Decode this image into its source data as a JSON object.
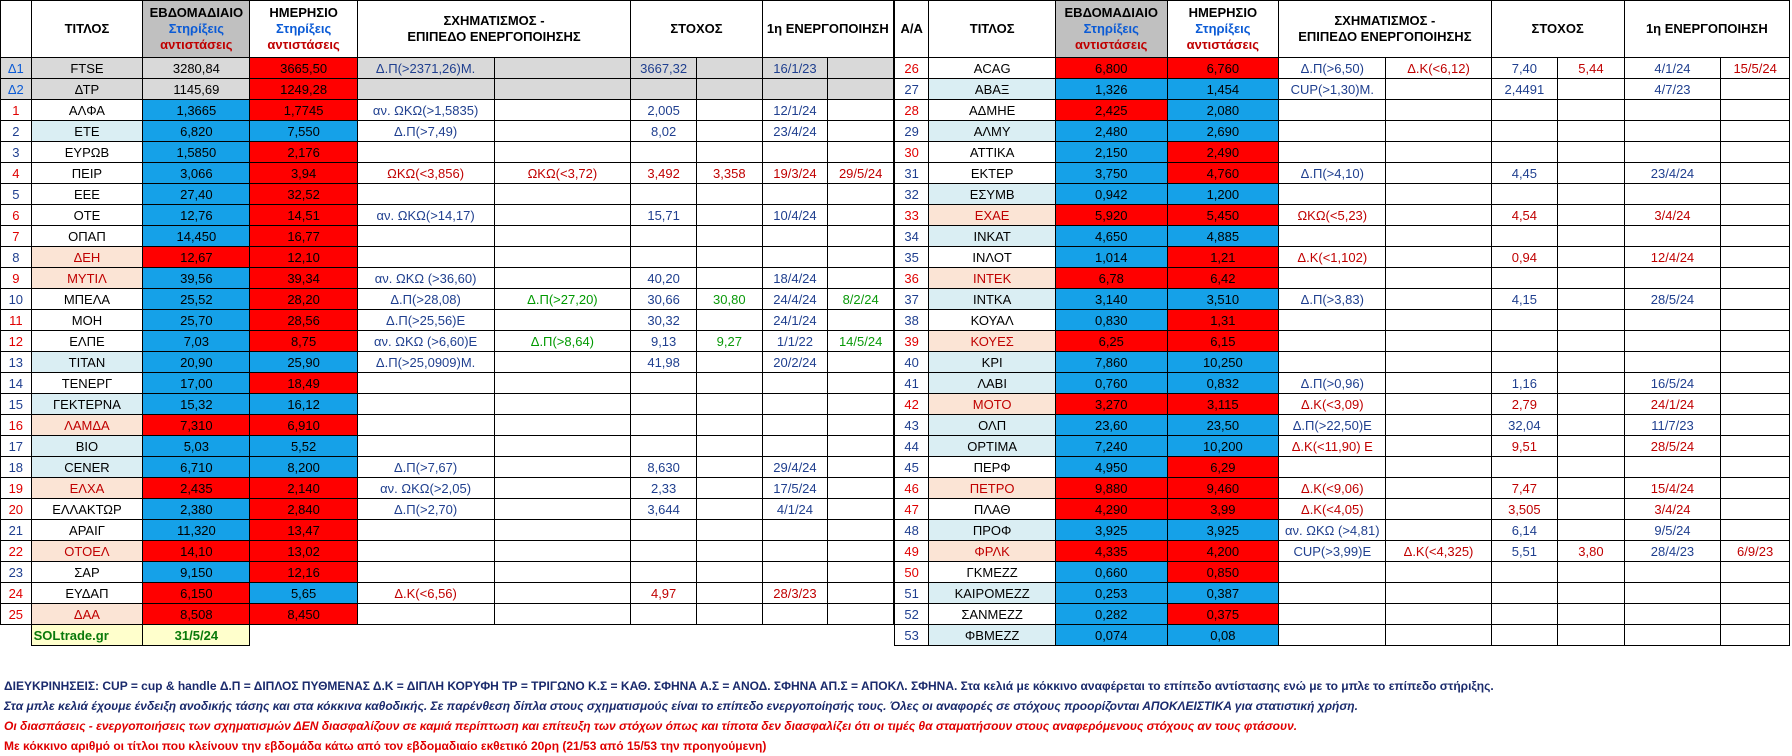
{
  "headers": {
    "title": "ΤΙΤΛΟΣ",
    "weekly_line1": "ΕΒΔΟΜΑΔΙΑΙΟ",
    "weekly_line2": "Στηρίξεις",
    "weekly_line3": "αντιστάσεις",
    "daily_line1": "ΗΜΕΡΗΣΙΟ",
    "daily_line2": "Στηρίξεις",
    "daily_line3": "αντιστάσεις",
    "pattern_line1": "ΣΧΗΜΑΤΙΣΜΟΣ -",
    "pattern_line2": "ΕΠΙΠΕΔΟ ΕΝΕΡΓΟΠΟΙΗΣΗΣ",
    "target": "ΣΤΟΧΟΣ",
    "activation": "1η ΕΝΕΡΓΟΠΟΙΗΣΗ",
    "aa": "Α/Α"
  },
  "left_rows": [
    {
      "idx": "Δ1",
      "name": "FTSE",
      "w": "3280,84",
      "d": "3665,50",
      "p1": "Δ.Π(>2371,26)Μ.",
      "p2": "",
      "t1": "3667,32",
      "t2": "",
      "a1": "16/1/23",
      "a2": ""
    },
    {
      "idx": "Δ2",
      "name": "ΔΤΡ",
      "w": "1145,69",
      "d": "1249,28",
      "p1": "",
      "p2": "",
      "t1": "",
      "t2": "",
      "a1": "",
      "a2": ""
    },
    {
      "idx": "1",
      "name": "ΑΛΦΑ",
      "w": "1,3665",
      "d": "1,7745",
      "p1": "αν. ΩΚΩ(>1,5835)",
      "p2": "",
      "t1": "2,005",
      "t2": "",
      "a1": "12/1/24",
      "a2": ""
    },
    {
      "idx": "2",
      "name": "ΕΤΕ",
      "w": "6,820",
      "d": "7,550",
      "p1": "Δ.Π(>7,49)",
      "p2": "",
      "t1": "8,02",
      "t2": "",
      "a1": "23/4/24",
      "a2": ""
    },
    {
      "idx": "3",
      "name": "ΕΥΡΩΒ",
      "w": "1,5850",
      "d": "2,176",
      "p1": "",
      "p2": "",
      "t1": "",
      "t2": "",
      "a1": "",
      "a2": ""
    },
    {
      "idx": "4",
      "name": "ΠΕΙΡ",
      "w": "3,066",
      "d": "3,94",
      "p1": "ΩΚΩ(<3,856)",
      "p2": "ΩΚΩ(<3,72)",
      "t1": "3,492",
      "t2": "3,358",
      "a1": "19/3/24",
      "a2": "29/5/24"
    },
    {
      "idx": "5",
      "name": "ΕΕΕ",
      "w": "27,40",
      "d": "32,52",
      "p1": "",
      "p2": "",
      "t1": "",
      "t2": "",
      "a1": "",
      "a2": ""
    },
    {
      "idx": "6",
      "name": "ΟΤΕ",
      "w": "12,76",
      "d": "14,51",
      "p1": "αν. ΩΚΩ(>14,17)",
      "p2": "",
      "t1": "15,71",
      "t2": "",
      "a1": "10/4/24",
      "a2": ""
    },
    {
      "idx": "7",
      "name": "ΟΠΑΠ",
      "w": "14,450",
      "d": "16,77",
      "p1": "",
      "p2": "",
      "t1": "",
      "t2": "",
      "a1": "",
      "a2": ""
    },
    {
      "idx": "8",
      "name": "ΔΕΗ",
      "w": "12,67",
      "d": "12,10",
      "p1": "",
      "p2": "",
      "t1": "",
      "t2": "",
      "a1": "",
      "a2": ""
    },
    {
      "idx": "9",
      "name": "ΜΥΤΙΛ",
      "w": "39,56",
      "d": "39,34",
      "p1": "αν. ΩΚΩ (>36,60)",
      "p2": "",
      "t1": "40,20",
      "t2": "",
      "a1": "18/4/24",
      "a2": ""
    },
    {
      "idx": "10",
      "name": "ΜΠΕΛΑ",
      "w": "25,52",
      "d": "28,20",
      "p1": "Δ.Π(>28,08)",
      "p2": "Δ.Π(>27,20)",
      "t1": "30,66",
      "t2": "30,80",
      "a1": "24/4/24",
      "a2": "8/2/24"
    },
    {
      "idx": "11",
      "name": "ΜΟΗ",
      "w": "25,70",
      "d": "28,56",
      "p1": "Δ.Π(>25,56)Ε",
      "p2": "",
      "t1": "30,32",
      "t2": "",
      "a1": "24/1/24",
      "a2": ""
    },
    {
      "idx": "12",
      "name": "ΕΛΠΕ",
      "w": "7,03",
      "d": "8,75",
      "p1": "αν. ΩΚΩ (>6,60)Ε",
      "p2": "Δ.Π(>8,64)",
      "t1": "9,13",
      "t2": "9,27",
      "a1": "1/1/22",
      "a2": "14/5/24"
    },
    {
      "idx": "13",
      "name": "ΤΙΤΑΝ",
      "w": "20,90",
      "d": "25,90",
      "p1": "Δ.Π(>25,0909)Μ.",
      "p2": "",
      "t1": "41,98",
      "t2": "",
      "a1": "20/2/24",
      "a2": ""
    },
    {
      "idx": "14",
      "name": "ΤΕΝΕΡΓ",
      "w": "17,00",
      "d": "18,49",
      "p1": "",
      "p2": "",
      "t1": "",
      "t2": "",
      "a1": "",
      "a2": ""
    },
    {
      "idx": "15",
      "name": "ΓΕΚΤΕΡΝΑ",
      "w": "15,32",
      "d": "16,12",
      "p1": "",
      "p2": "",
      "t1": "",
      "t2": "",
      "a1": "",
      "a2": ""
    },
    {
      "idx": "16",
      "name": "ΛΑΜΔΑ",
      "w": "7,310",
      "d": "6,910",
      "p1": "",
      "p2": "",
      "t1": "",
      "t2": "",
      "a1": "",
      "a2": ""
    },
    {
      "idx": "17",
      "name": "ΒΙΟ",
      "w": "5,03",
      "d": "5,52",
      "p1": "",
      "p2": "",
      "t1": "",
      "t2": "",
      "a1": "",
      "a2": ""
    },
    {
      "idx": "18",
      "name": "CENER",
      "w": "6,710",
      "d": "8,200",
      "p1": "Δ.Π(>7,67)",
      "p2": "",
      "t1": "8,630",
      "t2": "",
      "a1": "29/4/24",
      "a2": ""
    },
    {
      "idx": "19",
      "name": "ΕΛΧΑ",
      "w": "2,435",
      "d": "2,140",
      "p1": "αν. ΩΚΩ(>2,05)",
      "p2": "",
      "t1": "2,33",
      "t2": "",
      "a1": "17/5/24",
      "a2": ""
    },
    {
      "idx": "20",
      "name": "ΕΛΛΑΚΤΩΡ",
      "w": "2,380",
      "d": "2,840",
      "p1": "Δ.Π(>2,70)",
      "p2": "",
      "t1": "3,644",
      "t2": "",
      "a1": "4/1/24",
      "a2": ""
    },
    {
      "idx": "21",
      "name": "ΑΡΑΙΓ",
      "w": "11,320",
      "d": "13,47",
      "p1": "",
      "p2": "",
      "t1": "",
      "t2": "",
      "a1": "",
      "a2": ""
    },
    {
      "idx": "22",
      "name": "ΟΤΟΕΛ",
      "w": "14,10",
      "d": "13,02",
      "p1": "",
      "p2": "",
      "t1": "",
      "t2": "",
      "a1": "",
      "a2": ""
    },
    {
      "idx": "23",
      "name": "ΣΑΡ",
      "w": "9,150",
      "d": "12,16",
      "p1": "",
      "p2": "",
      "t1": "",
      "t2": "",
      "a1": "",
      "a2": ""
    },
    {
      "idx": "24",
      "name": "ΕΥΔΑΠ",
      "w": "6,150",
      "d": "5,65",
      "p1": "Δ.Κ(<6,56)",
      "p2": "",
      "t1": "4,97",
      "t2": "",
      "a1": "28/3/23",
      "a2": ""
    },
    {
      "idx": "25",
      "name": "ΔΑΑ",
      "w": "8,508",
      "d": "8,450",
      "p1": "",
      "p2": "",
      "t1": "",
      "t2": "",
      "a1": "",
      "a2": ""
    }
  ],
  "footer_row": {
    "site": "SOLtrade.gr",
    "date": "31/5/24"
  },
  "right_rows": [
    {
      "idx": "26",
      "name": "ACAG",
      "w": "6,800",
      "d": "6,760",
      "p1": "Δ.Π(>6,50)",
      "p2": "Δ.Κ(<6,12)",
      "t1": "7,40",
      "t2": "5,44",
      "a1": "4/1/24",
      "a2": "15/5/24"
    },
    {
      "idx": "27",
      "name": "ΑΒΑΞ",
      "w": "1,326",
      "d": "1,454",
      "p1": "CUP(>1,30)Μ.",
      "p2": "",
      "t1": "2,4491",
      "t2": "",
      "a1": "4/7/23",
      "a2": ""
    },
    {
      "idx": "28",
      "name": "ΑΔΜΗΕ",
      "w": "2,425",
      "d": "2,080",
      "p1": "",
      "p2": "",
      "t1": "",
      "t2": "",
      "a1": "",
      "a2": ""
    },
    {
      "idx": "29",
      "name": "ΑΛΜΥ",
      "w": "2,480",
      "d": "2,690",
      "p1": "",
      "p2": "",
      "t1": "",
      "t2": "",
      "a1": "",
      "a2": ""
    },
    {
      "idx": "30",
      "name": "ΑΤΤΙΚΑ",
      "w": "2,150",
      "d": "2,490",
      "p1": "",
      "p2": "",
      "t1": "",
      "t2": "",
      "a1": "",
      "a2": ""
    },
    {
      "idx": "31",
      "name": "ΕΚΤΕΡ",
      "w": "3,750",
      "d": "4,760",
      "p1": "Δ.Π(>4,10)",
      "p2": "",
      "t1": "4,45",
      "t2": "",
      "a1": "23/4/24",
      "a2": ""
    },
    {
      "idx": "32",
      "name": "ΕΣΥΜΒ",
      "w": "0,942",
      "d": "1,200",
      "p1": "",
      "p2": "",
      "t1": "",
      "t2": "",
      "a1": "",
      "a2": ""
    },
    {
      "idx": "33",
      "name": "ΕΧΑΕ",
      "w": "5,920",
      "d": "5,450",
      "p1": "ΩΚΩ(<5,23)",
      "p2": "",
      "t1": "4,54",
      "t2": "",
      "a1": "3/4/24",
      "a2": ""
    },
    {
      "idx": "34",
      "name": "ΙΝΚΑΤ",
      "w": "4,650",
      "d": "4,885",
      "p1": "",
      "p2": "",
      "t1": "",
      "t2": "",
      "a1": "",
      "a2": ""
    },
    {
      "idx": "35",
      "name": "ΙΝΛΟΤ",
      "w": "1,014",
      "d": "1,21",
      "p1": "Δ.Κ(<1,102)",
      "p2": "",
      "t1": "0,94",
      "t2": "",
      "a1": "12/4/24",
      "a2": ""
    },
    {
      "idx": "36",
      "name": "ΙΝΤΕΚ",
      "w": "6,78",
      "d": "6,42",
      "p1": "",
      "p2": "",
      "t1": "",
      "t2": "",
      "a1": "",
      "a2": ""
    },
    {
      "idx": "37",
      "name": "ΙΝΤΚΑ",
      "w": "3,140",
      "d": "3,510",
      "p1": "Δ.Π(>3,83)",
      "p2": "",
      "t1": "4,15",
      "t2": "",
      "a1": "28/5/24",
      "a2": ""
    },
    {
      "idx": "38",
      "name": "ΚΟΥΑΛ",
      "w": "0,830",
      "d": "1,31",
      "p1": "",
      "p2": "",
      "t1": "",
      "t2": "",
      "a1": "",
      "a2": ""
    },
    {
      "idx": "39",
      "name": "ΚΟΥΕΣ",
      "w": "6,25",
      "d": "6,15",
      "p1": "",
      "p2": "",
      "t1": "",
      "t2": "",
      "a1": "",
      "a2": ""
    },
    {
      "idx": "40",
      "name": "ΚΡΙ",
      "w": "7,860",
      "d": "10,250",
      "p1": "",
      "p2": "",
      "t1": "",
      "t2": "",
      "a1": "",
      "a2": ""
    },
    {
      "idx": "41",
      "name": "ΛΑΒΙ",
      "w": "0,760",
      "d": "0,832",
      "p1": "Δ.Π(>0,96)",
      "p2": "",
      "t1": "1,16",
      "t2": "",
      "a1": "16/5/24",
      "a2": ""
    },
    {
      "idx": "42",
      "name": "ΜΟΤΟ",
      "w": "3,270",
      "d": "3,115",
      "p1": "Δ.Κ(<3,09)",
      "p2": "",
      "t1": "2,79",
      "t2": "",
      "a1": "24/1/24",
      "a2": ""
    },
    {
      "idx": "43",
      "name": "ΟΛΠ",
      "w": "23,60",
      "d": "23,50",
      "p1": "Δ.Π(>22,50)Ε",
      "p2": "",
      "t1": "32,04",
      "t2": "",
      "a1": "11/7/23",
      "a2": ""
    },
    {
      "idx": "44",
      "name": "ΟΡΤΙΜΑ",
      "w": "7,240",
      "d": "10,200",
      "p1": "Δ.Κ(<11,90)  Ε",
      "p2": "",
      "t1": "9,51",
      "t2": "",
      "a1": "28/5/24",
      "a2": ""
    },
    {
      "idx": "45",
      "name": "ΠΕΡΦ",
      "w": "4,950",
      "d": "6,29",
      "p1": "",
      "p2": "",
      "t1": "",
      "t2": "",
      "a1": "",
      "a2": ""
    },
    {
      "idx": "46",
      "name": "ΠΕΤΡΟ",
      "w": "9,880",
      "d": "9,460",
      "p1": "Δ.Κ(<9,06)",
      "p2": "",
      "t1": "7,47",
      "t2": "",
      "a1": "15/4/24",
      "a2": ""
    },
    {
      "idx": "47",
      "name": "ΠΛΑΘ",
      "w": "4,290",
      "d": "3,99",
      "p1": "Δ.Κ(<4,05)",
      "p2": "",
      "t1": "3,505",
      "t2": "",
      "a1": "3/4/24",
      "a2": ""
    },
    {
      "idx": "48",
      "name": "ΠΡΟΦ",
      "w": "3,925",
      "d": "3,925",
      "p1": "αν. ΩΚΩ (>4,81)",
      "p2": "",
      "t1": "6,14",
      "t2": "",
      "a1": "9/5/24",
      "a2": ""
    },
    {
      "idx": "49",
      "name": "ΦΡΛΚ",
      "w": "4,335",
      "d": "4,200",
      "p1": "CUP(>3,99)Ε",
      "p2": "Δ.Κ(<4,325)",
      "t1": "5,51",
      "t2": "3,80",
      "a1": "28/4/23",
      "a2": "6/9/23"
    },
    {
      "idx": "50",
      "name": "ΓΚΜΕΖΖ",
      "w": "0,660",
      "d": "0,850",
      "p1": "",
      "p2": "",
      "t1": "",
      "t2": "",
      "a1": "",
      "a2": ""
    },
    {
      "idx": "51",
      "name": "ΚΑΙΡΟΜΕΖΖ",
      "w": "0,253",
      "d": "0,387",
      "p1": "",
      "p2": "",
      "t1": "",
      "t2": "",
      "a1": "",
      "a2": ""
    },
    {
      "idx": "52",
      "name": "ΣΑΝΜΕΖΖ",
      "w": "0,282",
      "d": "0,375",
      "p1": "",
      "p2": "",
      "t1": "",
      "t2": "",
      "a1": "",
      "a2": ""
    },
    {
      "idx": "53",
      "name": "ΦΒΜΕΖΖ",
      "w": "0,074",
      "d": "0,08",
      "p1": "",
      "p2": "",
      "t1": "",
      "t2": "",
      "a1": "",
      "a2": ""
    }
  ],
  "notes": {
    "line1": "ΔΙΕΥΚΡΙΝΗΣΕΙΣ: CUP = cup & handle   Δ.Π = ΔΙΠΛΟΣ ΠΥΘΜΕΝΑΣ  Δ.Κ = ΔΙΠΛΗ ΚΟΡΥΦΗ ΤΡ = ΤΡΙΓΩΝΟ  Κ.Σ = ΚΑΘ. ΣΦΗΝΑ  Α.Σ = ΑΝΟΔ. ΣΦΗΝΑ  ΑΠ.Σ = ΑΠΟΚΛ. ΣΦΗΝΑ. Στα κελιά με κόκκινο αναφέρεται το επίπεδο αντίστασης ενώ με το μπλε το επίπεδο στήριξης.",
    "line2": "Στα μπλε κελιά έχουμε ένδειξη ανοδικής τάσης και στα κόκκινα καθοδικής. Σε παρένθεση δίπλα στους σχηματισμούς είναι το επίπεδο ενεργοποίησής τους. Όλες οι αναφορές σε στόχους προορίζονται ΑΠΟΚΛΕΙΣΤΙΚΑ για  στατιστική χρήση.",
    "line3": "Οι διασπάσεις - ενεργοποιήσεις των σχηματισμών  ΔΕΝ διασφαλίζουν σε καμιά περίπτωση και επίτευξη των στόχων όπως και τίποτα δεν διασφαλίζει ότι οι τιμές θα σταματήσουν στους αναφερόμενους στόχους αν τους φτάσουν.",
    "line4": "Με κόκκινο αριθμό οι τίτλοι που κλείνουν την εβδομάδα κάτω από τον εβδομαδιαίο εκθετικό 20ρη (21/53 από 15/53 την προηγούμενη)"
  },
  "colors": {
    "support_blue": "#15a1e8",
    "resistance_red": "#ff0000",
    "header_gray": "#c0c0c0"
  }
}
